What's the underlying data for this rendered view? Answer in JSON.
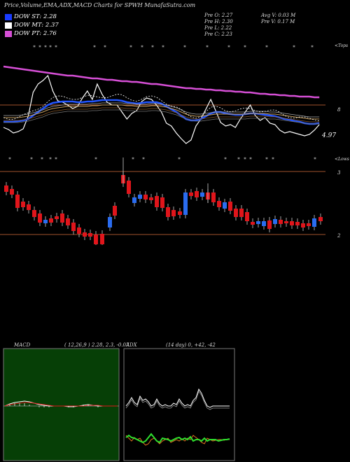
{
  "header": {
    "title": "Price,Volume,EMA,ADX,MACD Charts for SPWH MunafaSutra.com",
    "dow_st": "DOW ST: 2.28",
    "dow_mt": "DOW MT: 2.37",
    "dow_pt": "DOW PT: 2.76",
    "prev_o": "Pre  O: 2.27",
    "prev_h": "Pre  H: 2.30",
    "prev_l": "Pre  L: 2.22",
    "prev_c": "Pre  C: 2.23",
    "avg_v": "Avg V: 0.03 M",
    "prev_v": "Pre  V: 0.17 M"
  },
  "colors": {
    "st_swatch": "#1a3cff",
    "mt_swatch": "#ffffff",
    "pt_swatch": "#d64fd6",
    "up_candle": "#2a6cf0",
    "down_candle": "#e0151b",
    "macd_bg": "#063f06"
  },
  "top_panel": {
    "tag_right": "<Tops",
    "level_8": "8",
    "price_label": "4.97"
  },
  "candle_panel": {
    "tag_right": "<Lows",
    "level_3": "3",
    "level_2": "2"
  },
  "macd_panel": {
    "label": "MACD",
    "params": "( 12,26,9 ) 2.28, 2.3, -0.07"
  },
  "adx_panel": {
    "label": "ADX",
    "params": "(14 day) 0, +42, -42"
  },
  "chart_data": [
    {
      "type": "line",
      "name": "price-ema",
      "x": [
        1,
        2,
        3,
        4,
        5,
        6,
        7,
        8,
        9,
        10,
        11,
        12,
        13,
        14,
        15,
        16,
        17,
        18,
        19,
        20,
        21,
        22,
        23,
        24,
        25,
        26,
        27,
        28,
        29,
        30,
        31,
        32,
        33,
        34,
        35,
        36,
        37,
        38,
        39,
        40,
        41,
        42,
        43,
        44,
        45,
        46,
        47,
        48,
        49,
        50,
        51,
        52,
        53,
        54,
        55,
        56,
        57,
        58,
        59,
        60,
        61,
        62,
        63,
        64,
        65
      ],
      "series": [
        {
          "values": [
            182,
            185,
            190,
            188,
            184,
            166,
            132,
            120,
            115,
            108,
            130,
            144,
            146,
            150,
            155,
            152,
            140,
            130,
            142,
            120,
            135,
            146,
            150,
            150,
            160,
            170,
            162,
            158,
            145,
            140,
            142,
            150,
            160,
            176,
            180,
            190,
            198,
            205,
            200,
            180,
            170,
            156,
            142,
            158,
            175,
            180,
            178,
            182,
            170,
            160,
            150,
            165,
            172,
            168,
            176,
            178,
            186,
            190,
            188,
            190,
            192,
            194,
            192,
            186,
            178
          ]
        },
        {
          "values": [
            174,
            174,
            174,
            173,
            172,
            170,
            165,
            160,
            155,
            150,
            147,
            146,
            145,
            145,
            145,
            146,
            146,
            145,
            145,
            144,
            143,
            143,
            143,
            143,
            144,
            146,
            147,
            148,
            147,
            146,
            146,
            146,
            148,
            152,
            156,
            160,
            165,
            170,
            172,
            172,
            170,
            166,
            162,
            160,
            160,
            162,
            163,
            164,
            164,
            163,
            162,
            162,
            163,
            164,
            165,
            166,
            168,
            170,
            171,
            173,
            174,
            176,
            177,
            177,
            176
          ]
        },
        {
          "values": [
            168,
            168,
            168,
            168,
            167,
            166,
            164,
            162,
            160,
            157,
            155,
            154,
            153,
            152,
            152,
            152,
            152,
            152,
            151,
            151,
            150,
            150,
            150,
            150,
            150,
            151,
            151,
            152,
            152,
            152,
            151,
            151,
            152,
            153,
            155,
            157,
            160,
            163,
            165,
            166,
            166,
            165,
            164,
            163,
            163,
            163,
            163,
            163,
            163,
            163,
            162,
            162,
            162,
            162,
            163,
            163,
            164,
            165,
            166,
            167,
            168,
            169,
            170,
            170,
            170
          ]
        },
        {
          "values": [
            95,
            96,
            97,
            98,
            99,
            100,
            101,
            102,
            103,
            104,
            105,
            106,
            107,
            108,
            108,
            109,
            110,
            111,
            112,
            112,
            113,
            114,
            114,
            115,
            116,
            116,
            117,
            117,
            118,
            119,
            120,
            120,
            121,
            122,
            123,
            124,
            125,
            126,
            126,
            127,
            127,
            128,
            128,
            129,
            129,
            130,
            130,
            131,
            131,
            132,
            132,
            133,
            134,
            134,
            135,
            135,
            136,
            136,
            137,
            137,
            138,
            138,
            138,
            139,
            139
          ]
        }
      ]
    },
    {
      "type": "bar",
      "name": "candlesticks"
    },
    {
      "type": "line",
      "name": "macd"
    },
    {
      "type": "line",
      "name": "adx"
    }
  ]
}
